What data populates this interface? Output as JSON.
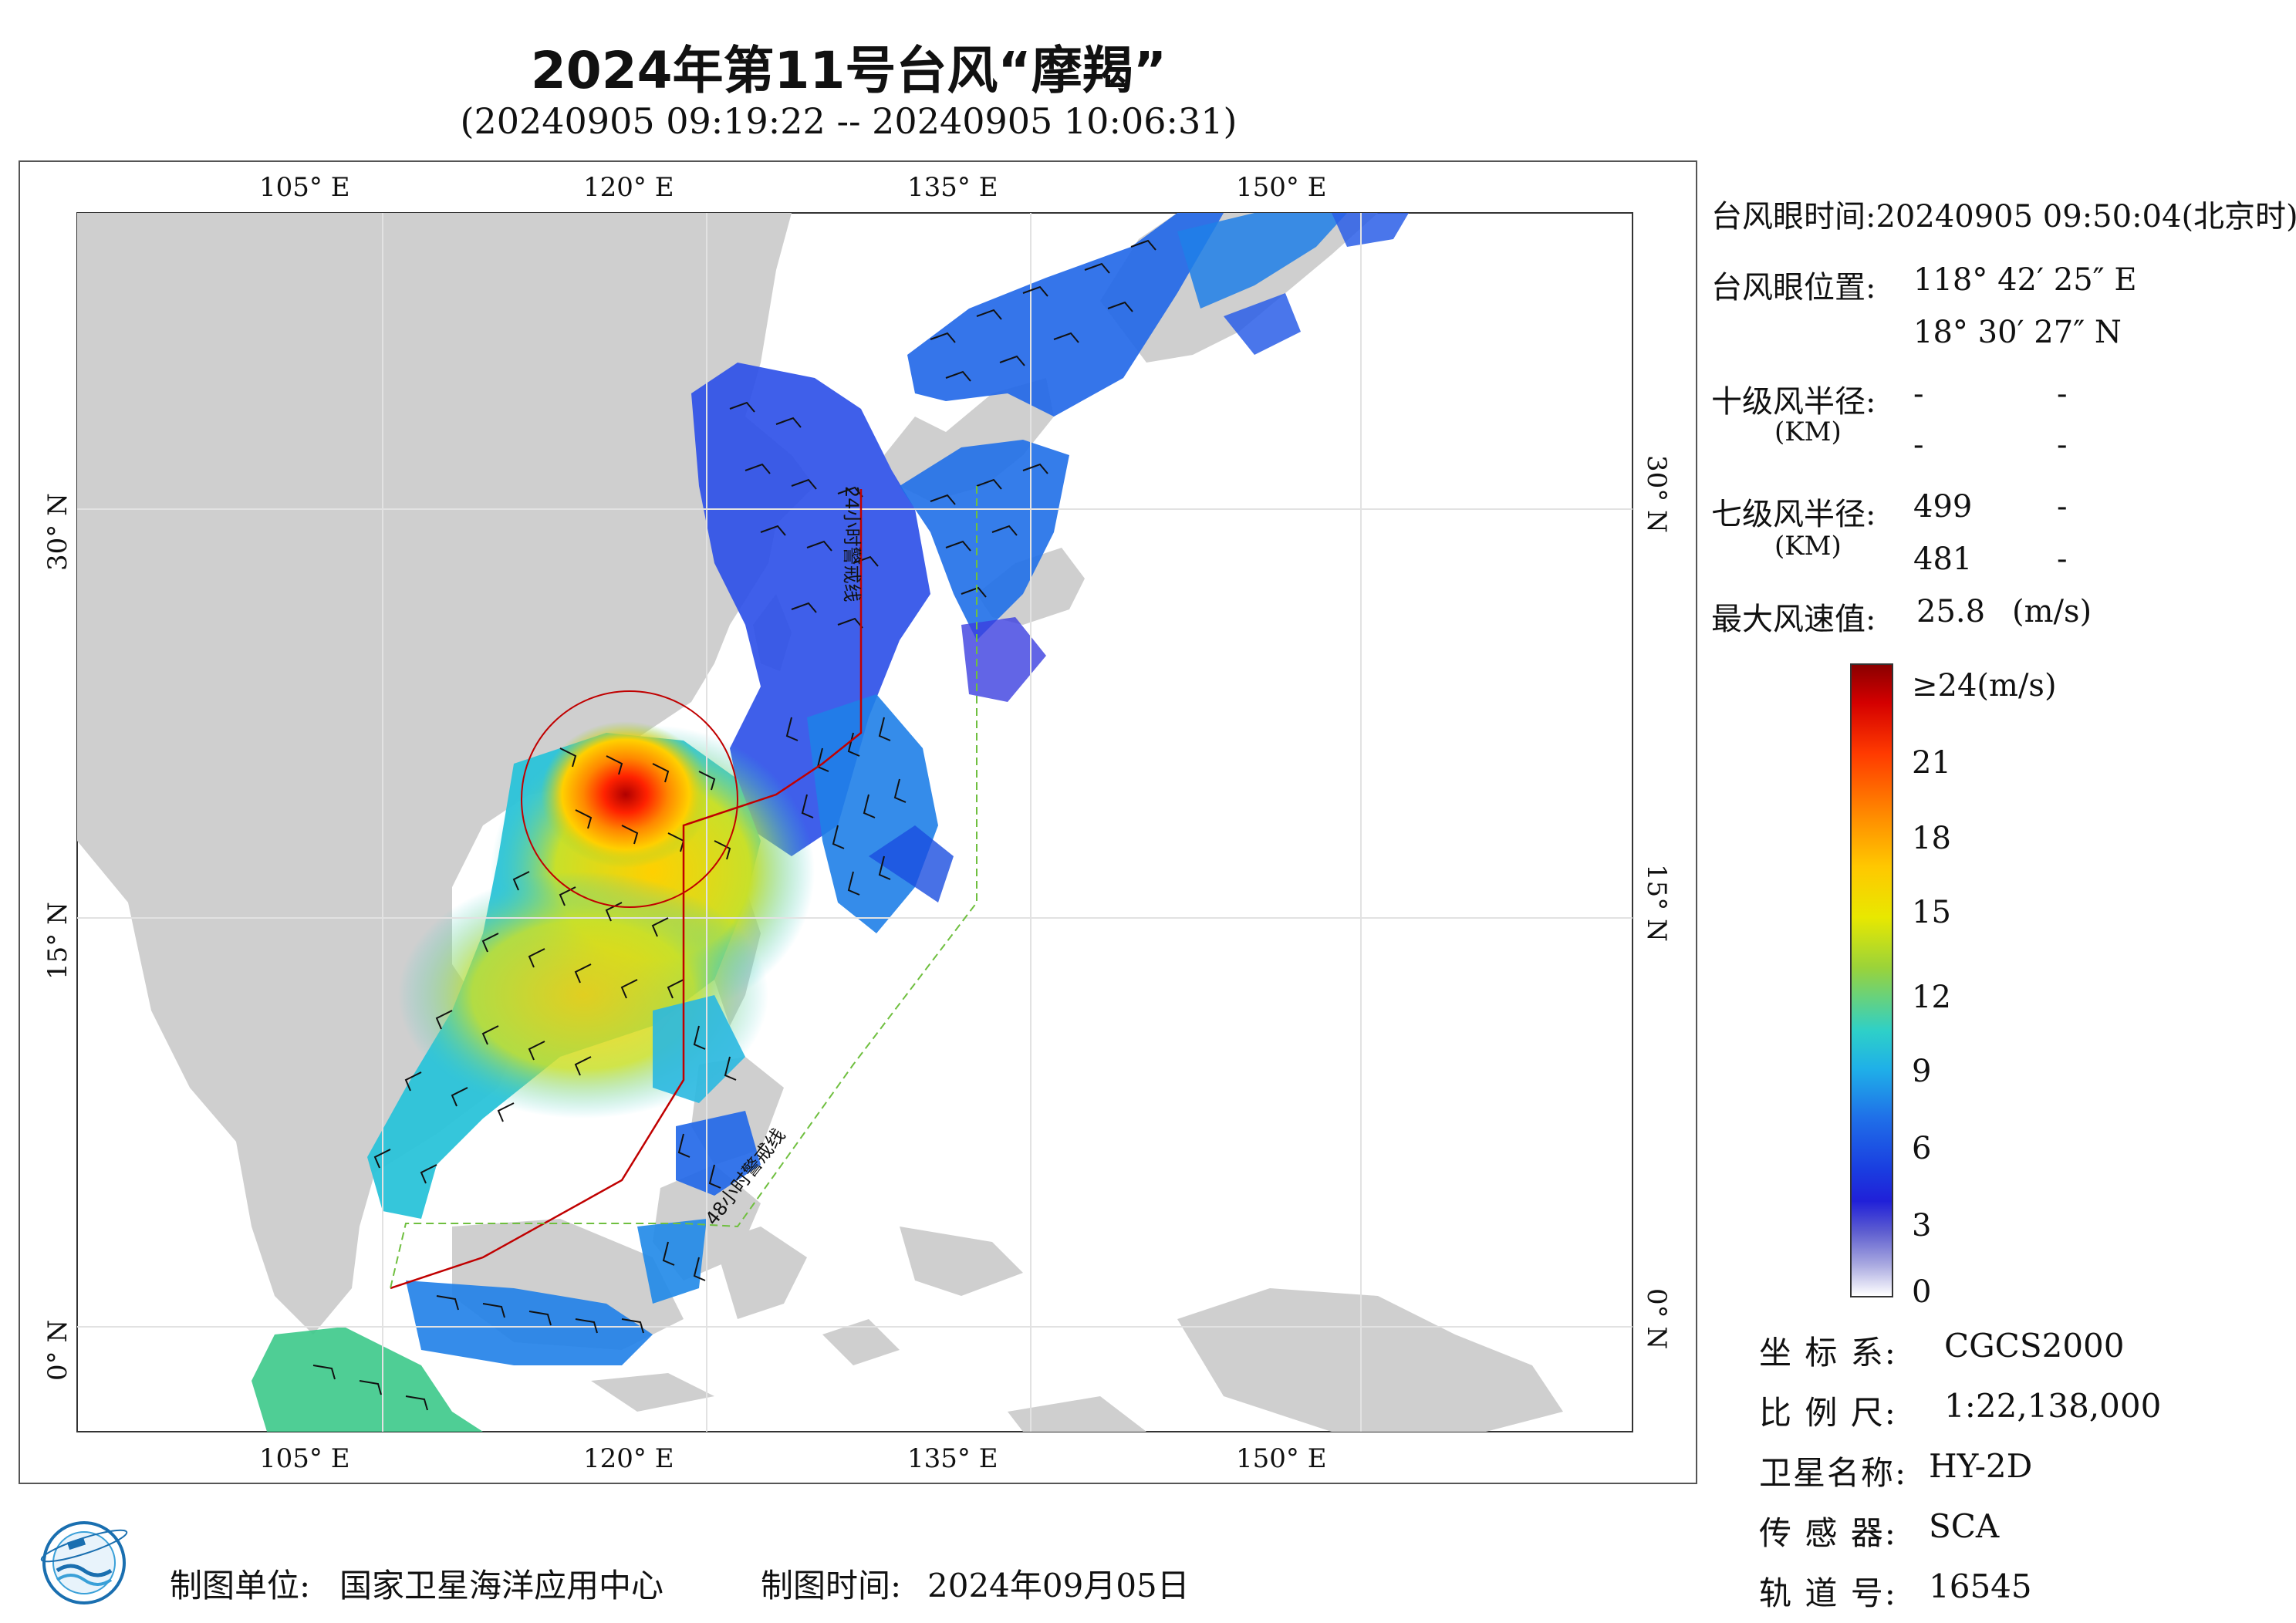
{
  "header": {
    "title": "2024年第11号台风“摩羯”",
    "subtitle": "(20240905 09:19:22 -- 20240905 10:06:31)"
  },
  "map": {
    "lon_labels": [
      "105° E",
      "120° E",
      "135° E",
      "150° E"
    ],
    "lat_labels": [
      "30° N",
      "15° N",
      "0° N"
    ],
    "warning_24h": "24小时警戒线",
    "warning_48h": "48小时警戒线",
    "colors": {
      "land": "#cfcfcf",
      "ocean": "#ffffff",
      "warning_24h": "#c00000",
      "warning_48h": "#6fbf3f",
      "wind_radius": "#c00000"
    }
  },
  "info": {
    "eye_time_label": "台风眼时间:",
    "eye_time_value": "20240905 09:50:04(北京时)",
    "eye_pos_label": "台风眼位置:",
    "eye_lon": "118° 42′ 25″ E",
    "eye_lat": "18° 30′ 27″ N",
    "r10_label": "十级风半径:",
    "r10_unit": "(KM)",
    "r10_values": [
      "-",
      "-",
      "-",
      "-"
    ],
    "r7_label": "七级风半径:",
    "r7_unit": "(KM)",
    "r7_values": [
      "499",
      "-",
      "481",
      "-"
    ],
    "max_wind_label": "最大风速值:",
    "max_wind_value": "25.8",
    "max_wind_unit": "(m/s)"
  },
  "colorbar": {
    "labels": [
      "≥24(m/s)",
      "21",
      "18",
      "15",
      "12",
      "9",
      "6",
      "3",
      "0"
    ],
    "range": [
      0,
      24
    ]
  },
  "meta": {
    "crs_label": "坐 标 系:",
    "crs_value": "CGCS2000",
    "scale_label": "比 例 尺:",
    "scale_value": "1:22,138,000",
    "satellite_label": "卫星名称:",
    "satellite_value": "HY-2D",
    "sensor_label": "传 感 器:",
    "sensor_value": "SCA",
    "orbit_label": "轨 道 号:",
    "orbit_value": "16545"
  },
  "footer": {
    "producer_label": "制图单位:",
    "producer_value": "国家卫星海洋应用中心",
    "date_label": "制图时间:",
    "date_value": "2024年09月05日"
  }
}
